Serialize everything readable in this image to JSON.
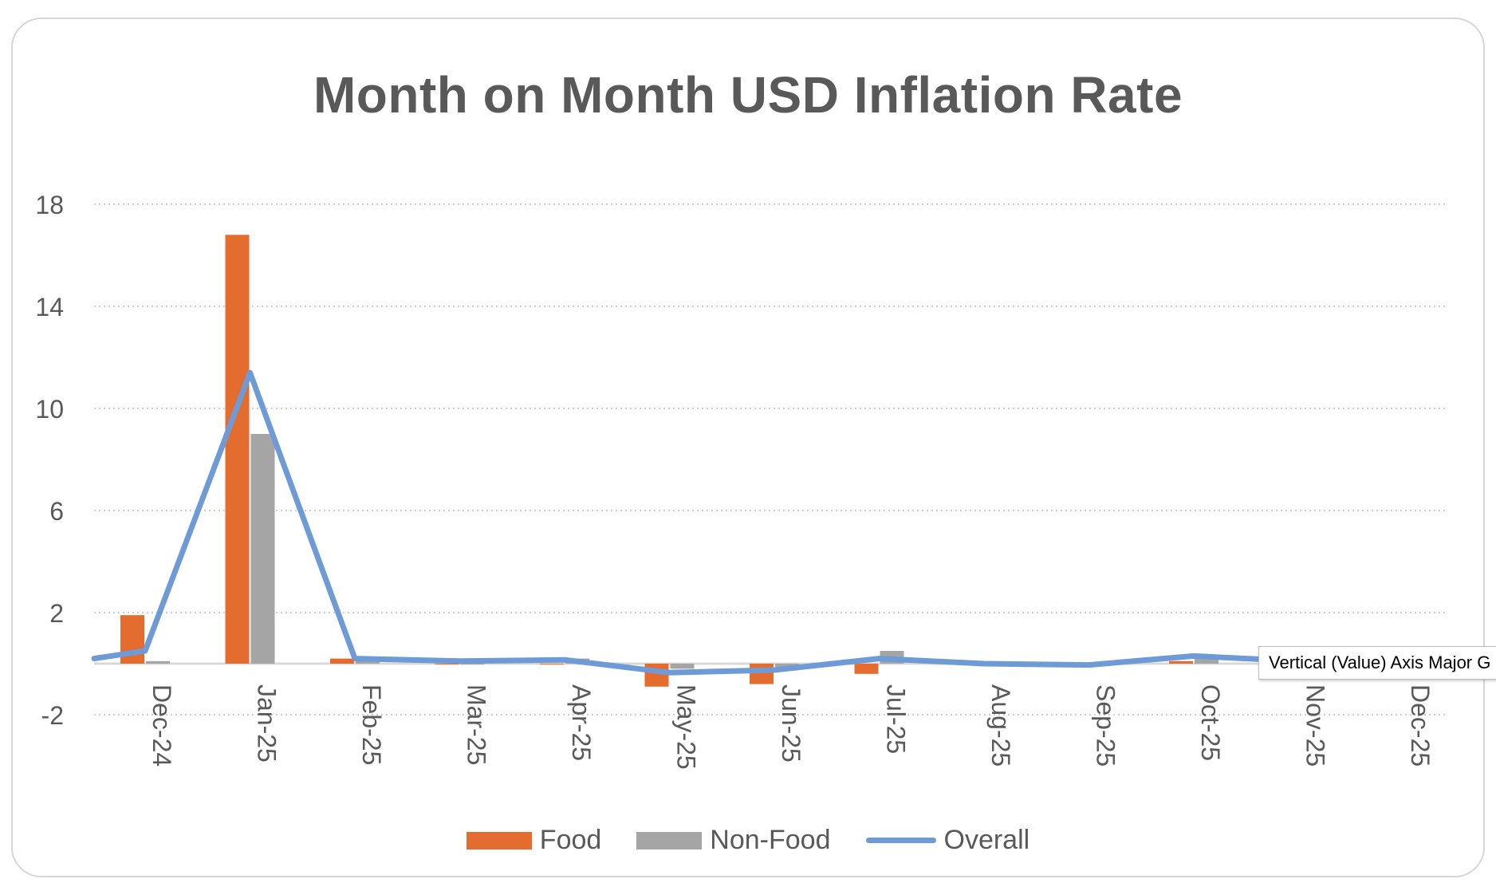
{
  "colors": {
    "food": "#E46C2E",
    "non_food": "#A5A5A5",
    "overall": "#6E9BD6",
    "grid": "#D0D0D0",
    "text": "#595959"
  },
  "tooltip": {
    "text": "Vertical (Value) Axis Major G"
  },
  "chart_data": {
    "type": "bar",
    "title": "Month on Month USD Inflation Rate",
    "xlabel": "",
    "ylabel": "",
    "ylim": [
      -2,
      18
    ],
    "yticks": [
      -2,
      2,
      6,
      10,
      14,
      18
    ],
    "gridlines": "horizontal-dotted",
    "legend": "bottom",
    "categories": [
      "Dec-24",
      "Jan-25",
      "Feb-25",
      "Mar-25",
      "Apr-25",
      "May-25",
      "Jun-25",
      "Jul-25",
      "Aug-25",
      "Sep-25",
      "Oct-25",
      "Nov-25",
      "Dec-25"
    ],
    "series": [
      {
        "name": "Food",
        "type": "bar",
        "values": [
          1.9,
          16.8,
          0.2,
          0.0,
          0.0,
          -0.9,
          -0.8,
          -0.4,
          0.0,
          0.0,
          0.1,
          0.0,
          0.0
        ]
      },
      {
        "name": "Non-Food",
        "type": "bar",
        "values": [
          0.1,
          9.0,
          0.1,
          0.0,
          0.2,
          -0.2,
          -0.2,
          0.5,
          0.0,
          0.0,
          0.2,
          0.0,
          0.0
        ]
      },
      {
        "name": "Overall",
        "type": "line",
        "values": [
          0.5,
          11.4,
          0.2,
          0.1,
          0.15,
          -0.35,
          -0.25,
          0.2,
          0.0,
          -0.05,
          0.3,
          0.1,
          null
        ]
      }
    ]
  }
}
